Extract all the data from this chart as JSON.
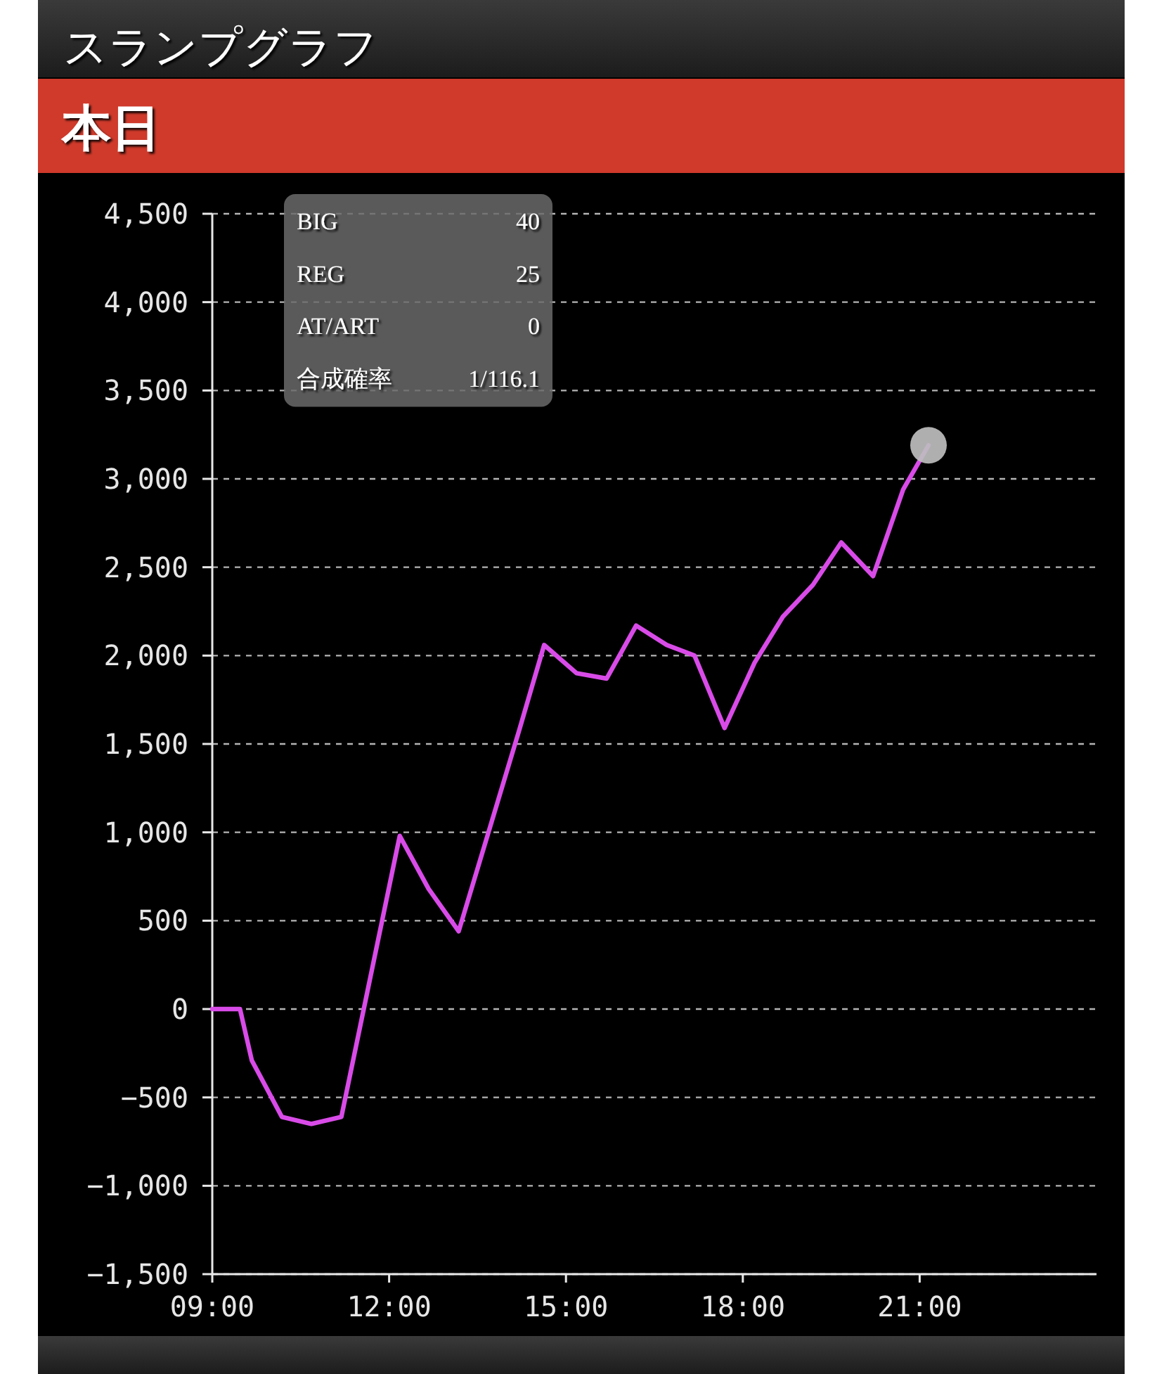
{
  "chart_data": {
    "type": "line",
    "title": "スランプグラフ",
    "subtitle": "本日",
    "x": [
      9,
      9.47,
      9.67,
      10.18,
      10.68,
      11.19,
      12.18,
      12.67,
      13.18,
      14.2,
      14.63,
      15.18,
      15.69,
      16.19,
      16.71,
      17.18,
      17.69,
      18.2,
      18.68,
      19.19,
      19.67,
      20.21,
      20.72,
      21.15
    ],
    "series": [
      {
        "color": "#d94be8",
        "values": [
          0,
          0,
          -290,
          -610,
          -650,
          -610,
          980,
          680,
          440,
          1570,
          2060,
          1900,
          1870,
          2170,
          2060,
          2000,
          1590,
          1960,
          2220,
          2400,
          2640,
          2450,
          2940,
          3190
        ]
      },
      {
        "type": "scatter",
        "marker": "circle",
        "color": "#bebebe",
        "x": [
          21.15
        ],
        "values": [
          3190
        ]
      }
    ],
    "xlim": [
      9,
      24
    ],
    "xticks": [
      {
        "value": 9,
        "label": "09:00"
      },
      {
        "value": 12,
        "label": "12:00"
      },
      {
        "value": 15,
        "label": "15:00"
      },
      {
        "value": 18,
        "label": "18:00"
      },
      {
        "value": 21,
        "label": "21:00"
      }
    ],
    "ylim": [
      -1500,
      4500
    ],
    "yticks": [
      {
        "value": -1500,
        "label": "−1,500"
      },
      {
        "value": -1000,
        "label": "−1,000"
      },
      {
        "value": -500,
        "label": "−500"
      },
      0,
      500,
      {
        "value": 1000,
        "label": "1,000"
      },
      {
        "value": 1500,
        "label": "1,500"
      },
      {
        "value": 2000,
        "label": "2,000"
      },
      {
        "value": 2500,
        "label": "2,500"
      },
      {
        "value": 3000,
        "label": "3,000"
      },
      {
        "value": 3500,
        "label": "3,500"
      },
      {
        "value": 4000,
        "label": "4,000"
      },
      {
        "value": 4500,
        "label": "4,500"
      }
    ],
    "grid": "y",
    "annotations": [
      "BIG",
      "40",
      "REG",
      "25",
      "AT/ART",
      "0",
      "合成確率",
      "1/116.1"
    ]
  }
}
